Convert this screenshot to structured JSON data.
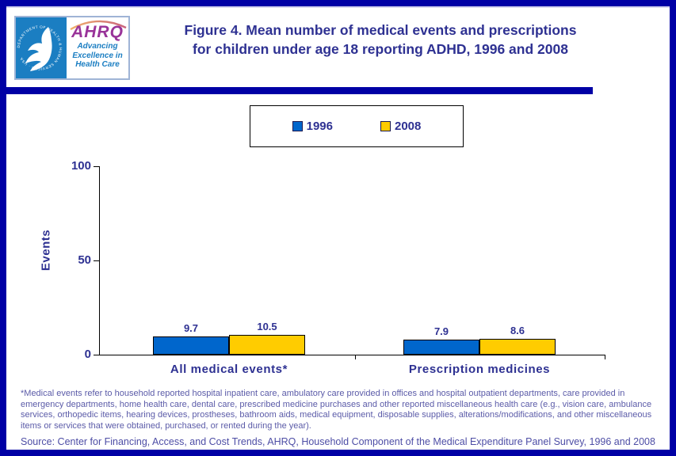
{
  "header": {
    "title_line1": "Figure 4. Mean number of medical events and prescriptions",
    "title_line2": "for children under age 18 reporting ADHD, 1996 and 2008",
    "logo": {
      "hhs_circle_text": "DEPARTMENT OF HEALTH & HUMAN SERVICES · USA",
      "ahrq_text": "AHRQ",
      "tagline_line1": "Advancing",
      "tagline_line2": "Excellence in",
      "tagline_line3": "Health Care"
    }
  },
  "legend": {
    "items": [
      {
        "label": "1996",
        "color": "#0066CC"
      },
      {
        "label": "2008",
        "color": "#FFCC00"
      }
    ]
  },
  "chart_data": {
    "type": "bar",
    "title": "Mean number of medical events and prescriptions for children under age 18 reporting ADHD, 1996 and 2008",
    "xlabel": "",
    "ylabel": "Events",
    "ylim": [
      0,
      100
    ],
    "yticks": [
      0,
      50,
      100
    ],
    "grid": false,
    "legend_position": "top",
    "categories": [
      "All medical events*",
      "Prescription medicines"
    ],
    "series": [
      {
        "name": "1996",
        "color": "#0066CC",
        "values": [
          9.7,
          7.9
        ]
      },
      {
        "name": "2008",
        "color": "#FFCC00",
        "values": [
          10.5,
          8.6
        ]
      }
    ]
  },
  "footnote": "*Medical events refer to household reported hospital inpatient care, ambulatory care provided in offices and hospital outpatient departments, care provided in emergency departments, home health care, dental care, prescribed medicine purchases and other reported miscellaneous health care (e.g., vision care, ambulance services, orthopedic items, hearing devices, prostheses, bathroom aids, medical equipment, disposable supplies, alterations/modifications, and other miscellaneous items or services that were obtained, purchased, or rented during the year).",
  "source": "Source: Center for Financing, Access, and Cost Trends, AHRQ, Household Component of the Medical Expenditure Panel Survey, 1996 and 2008",
  "colors": {
    "border_navy": "#0000A5",
    "title_text": "#2E3192",
    "bar_1996": "#0066CC",
    "bar_2008": "#FFCC00",
    "footnote_text": "#5B5BA8",
    "logo_blue": "#1B7EC2",
    "ahrq_purple": "#993399"
  }
}
